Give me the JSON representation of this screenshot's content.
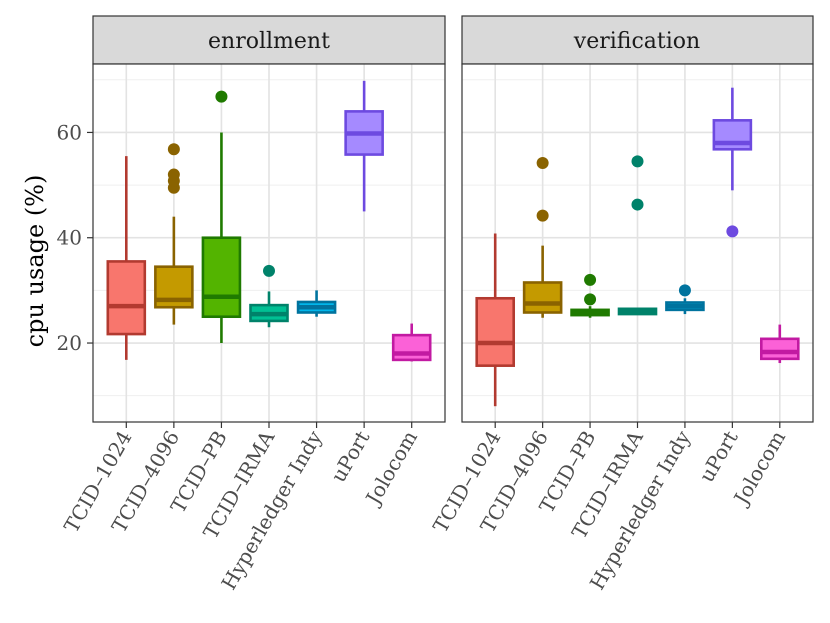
{
  "chart_data": {
    "type": "boxplot",
    "ylabel": "cpu usage (%)",
    "xlabel": "",
    "ylim": [
      5,
      73
    ],
    "yticks": [
      20,
      40,
      60
    ],
    "categories": [
      "TCID–1024",
      "TCID–4096",
      "TCID–PB",
      "TCID–IRMA",
      "Hyperledger Indy",
      "uPort",
      "Jolocom"
    ],
    "colors": {
      "fill": [
        "#f8766d",
        "#c49a00",
        "#53b400",
        "#00c094",
        "#00b6eb",
        "#a58aff",
        "#fb61d7"
      ],
      "line": [
        "#b23a30",
        "#8a6300",
        "#1f7a00",
        "#00826a",
        "#00739e",
        "#6d4ae0",
        "#c21aa2"
      ]
    },
    "panels": [
      {
        "title": "enrollment",
        "boxes": [
          {
            "category": "TCID–1024",
            "min": 16.8,
            "q1": 21.7,
            "median": 27.0,
            "q3": 35.5,
            "max": 55.5,
            "outliers": []
          },
          {
            "category": "TCID–4096",
            "min": 23.5,
            "q1": 26.8,
            "median": 28.2,
            "q3": 34.5,
            "max": 44.0,
            "outliers": [
              49.5,
              50.8,
              52.0,
              56.8
            ]
          },
          {
            "category": "TCID–PB",
            "min": 20.0,
            "q1": 25.0,
            "median": 28.8,
            "q3": 40.0,
            "max": 60.0,
            "outliers": [
              66.8
            ]
          },
          {
            "category": "TCID–IRMA",
            "min": 23.0,
            "q1": 24.2,
            "median": 25.5,
            "q3": 27.2,
            "max": 29.8,
            "outliers": [
              33.7
            ]
          },
          {
            "category": "Hyperledger Indy",
            "min": 25.0,
            "q1": 25.8,
            "median": 26.8,
            "q3": 27.8,
            "max": 30.0,
            "outliers": []
          },
          {
            "category": "uPort",
            "min": 45.0,
            "q1": 55.8,
            "median": 59.8,
            "q3": 64.0,
            "max": 69.8,
            "outliers": []
          },
          {
            "category": "Jolocom",
            "min": 16.5,
            "q1": 16.8,
            "median": 18.0,
            "q3": 21.5,
            "max": 23.7,
            "outliers": []
          }
        ]
      },
      {
        "title": "verification",
        "boxes": [
          {
            "category": "TCID–1024",
            "min": 8.0,
            "q1": 15.7,
            "median": 20.0,
            "q3": 28.5,
            "max": 40.8,
            "outliers": []
          },
          {
            "category": "TCID–4096",
            "min": 24.8,
            "q1": 25.8,
            "median": 27.5,
            "q3": 31.5,
            "max": 38.5,
            "outliers": [
              44.2,
              54.2
            ]
          },
          {
            "category": "TCID–PB",
            "min": 24.8,
            "q1": 25.3,
            "median": 25.8,
            "q3": 26.3,
            "max": 27.0,
            "outliers": [
              28.3,
              32.0
            ]
          },
          {
            "category": "TCID–IRMA",
            "min": 25.5,
            "q1": 25.5,
            "median": 26.0,
            "q3": 26.5,
            "max": 26.5,
            "outliers": [
              46.3,
              54.5
            ]
          },
          {
            "category": "Hyperledger Indy",
            "min": 25.5,
            "q1": 26.3,
            "median": 27.0,
            "q3": 27.7,
            "max": 28.5,
            "outliers": [
              30.0
            ]
          },
          {
            "category": "uPort",
            "min": 49.0,
            "q1": 56.8,
            "median": 58.0,
            "q3": 62.3,
            "max": 68.5,
            "outliers": [
              41.2
            ]
          },
          {
            "category": "Jolocom",
            "min": 16.2,
            "q1": 17.0,
            "median": 18.3,
            "q3": 20.8,
            "max": 23.5,
            "outliers": []
          }
        ]
      }
    ]
  }
}
